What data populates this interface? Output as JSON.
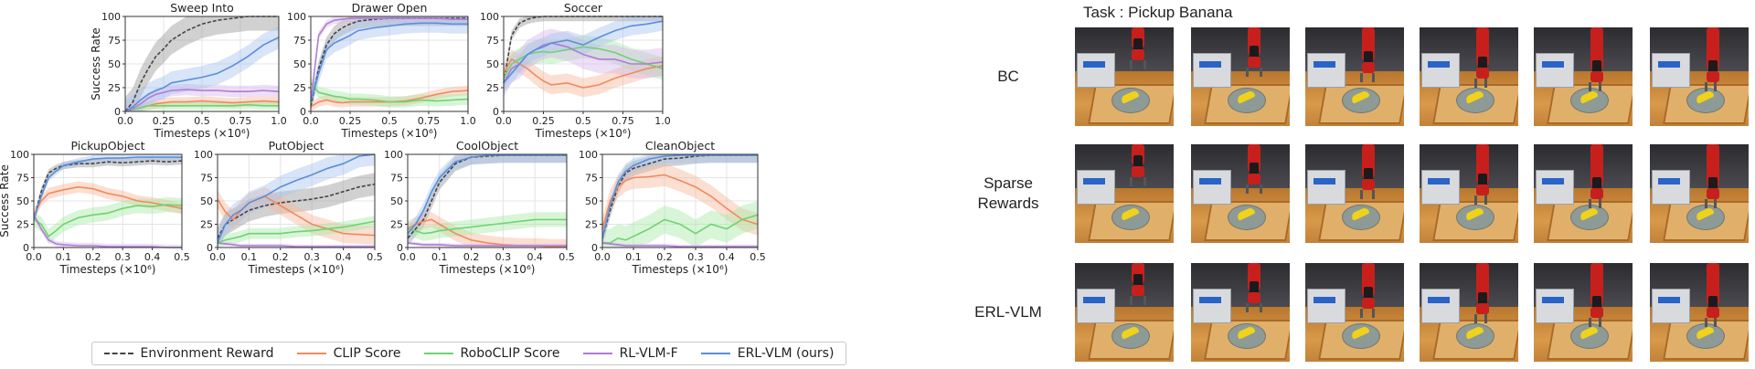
{
  "chart_data": [
    {
      "type": "line",
      "title": "Sweep Into",
      "xlabel": "Timesteps (×10⁶)",
      "ylabel": "Success Rate",
      "xlim": [
        0,
        1.0
      ],
      "ylim": [
        0,
        100
      ],
      "xticks": [
        "0.0",
        "0.25",
        "0.5",
        "0.75",
        "1.0"
      ],
      "yticks": [
        "0",
        "25",
        "50",
        "75",
        "100"
      ],
      "x": [
        0,
        0.05,
        0.1,
        0.15,
        0.2,
        0.25,
        0.3,
        0.4,
        0.5,
        0.6,
        0.7,
        0.8,
        0.9,
        1.0
      ],
      "series": [
        {
          "name": "Environment Reward",
          "values": [
            0,
            10,
            30,
            45,
            58,
            66,
            75,
            85,
            92,
            96,
            98,
            100,
            100,
            100
          ],
          "band": 15
        },
        {
          "name": "CLIP Score",
          "values": [
            0,
            2,
            4,
            6,
            8,
            9,
            10,
            10,
            11,
            10,
            9,
            10,
            11,
            10
          ],
          "band": 5
        },
        {
          "name": "RoboCLIP Score",
          "values": [
            0,
            2,
            4,
            6,
            6,
            6,
            6,
            6,
            6,
            6,
            6,
            7,
            6,
            6
          ],
          "band": 4
        },
        {
          "name": "RL-VLM-F",
          "values": [
            0,
            3,
            8,
            14,
            18,
            20,
            22,
            23,
            22,
            22,
            21,
            21,
            22,
            21
          ],
          "band": 6
        },
        {
          "name": "ERL-VLM (ours)",
          "values": [
            0,
            5,
            12,
            18,
            22,
            25,
            30,
            33,
            36,
            40,
            48,
            58,
            70,
            78
          ],
          "band": 12
        }
      ]
    },
    {
      "type": "line",
      "title": "Drawer Open",
      "xlabel": "Timesteps (×10⁶)",
      "ylabel": "",
      "xlim": [
        0,
        1.0
      ],
      "ylim": [
        0,
        100
      ],
      "xticks": [
        "0.0",
        "0.25",
        "0.5",
        "0.75",
        "1.0"
      ],
      "yticks": [
        "0",
        "25",
        "50",
        "75",
        "100"
      ],
      "x": [
        0,
        0.05,
        0.1,
        0.15,
        0.2,
        0.25,
        0.3,
        0.4,
        0.5,
        0.6,
        0.7,
        0.8,
        0.9,
        1.0
      ],
      "series": [
        {
          "name": "Environment Reward",
          "values": [
            5,
            45,
            70,
            82,
            88,
            92,
            95,
            97,
            98,
            98,
            98,
            98,
            98,
            98
          ],
          "band": 8
        },
        {
          "name": "CLIP Score",
          "values": [
            5,
            10,
            12,
            10,
            9,
            10,
            10,
            10,
            10,
            11,
            14,
            18,
            21,
            22
          ],
          "band": 5
        },
        {
          "name": "RoboCLIP Score",
          "values": [
            30,
            20,
            18,
            16,
            15,
            13,
            13,
            12,
            10,
            10,
            12,
            11,
            12,
            13
          ],
          "band": 6
        },
        {
          "name": "RL-VLM-F",
          "values": [
            10,
            80,
            92,
            96,
            97,
            98,
            98,
            98,
            98,
            98,
            98,
            98,
            97,
            97
          ],
          "band": 4
        },
        {
          "name": "ERL-VLM (ours)",
          "values": [
            10,
            40,
            65,
            72,
            76,
            80,
            85,
            88,
            90,
            92,
            93,
            93,
            92,
            92
          ],
          "band": 10
        }
      ]
    },
    {
      "type": "line",
      "title": "Soccer",
      "xlabel": "Timesteps (×10⁶)",
      "ylabel": "",
      "xlim": [
        0,
        1.0
      ],
      "ylim": [
        0,
        100
      ],
      "xticks": [
        "0.0",
        "0.25",
        "0.5",
        "0.75",
        "1.0"
      ],
      "yticks": [
        "0",
        "25",
        "50",
        "75",
        "100"
      ],
      "x": [
        0,
        0.05,
        0.1,
        0.15,
        0.2,
        0.25,
        0.3,
        0.4,
        0.5,
        0.6,
        0.7,
        0.8,
        0.9,
        1.0
      ],
      "series": [
        {
          "name": "Environment Reward",
          "values": [
            30,
            80,
            93,
            97,
            99,
            100,
            100,
            100,
            100,
            100,
            100,
            100,
            100,
            100
          ],
          "band": 5
        },
        {
          "name": "CLIP Score",
          "values": [
            40,
            55,
            50,
            45,
            38,
            32,
            28,
            30,
            25,
            28,
            35,
            40,
            45,
            48
          ],
          "band": 10
        },
        {
          "name": "RoboCLIP Score",
          "values": [
            35,
            50,
            55,
            60,
            62,
            63,
            62,
            65,
            68,
            66,
            62,
            55,
            50,
            45
          ],
          "band": 12
        },
        {
          "name": "RL-VLM-F",
          "values": [
            30,
            45,
            50,
            60,
            65,
            70,
            72,
            68,
            60,
            55,
            55,
            50,
            50,
            52
          ],
          "band": 15
        },
        {
          "name": "ERL-VLM (ours)",
          "values": [
            30,
            40,
            50,
            60,
            65,
            68,
            72,
            75,
            70,
            78,
            85,
            90,
            92,
            95
          ],
          "band": 10
        }
      ]
    },
    {
      "type": "line",
      "title": "PickupObject",
      "xlabel": "Timesteps (×10⁶)",
      "ylabel": "Success Rate",
      "xlim": [
        0,
        0.5
      ],
      "ylim": [
        0,
        100
      ],
      "xticks": [
        "0.0",
        "0.1",
        "0.2",
        "0.3",
        "0.4",
        "0.5"
      ],
      "yticks": [
        "0",
        "25",
        "50",
        "75",
        "100"
      ],
      "x": [
        0,
        0.025,
        0.05,
        0.075,
        0.1,
        0.15,
        0.2,
        0.25,
        0.3,
        0.35,
        0.4,
        0.45,
        0.5
      ],
      "series": [
        {
          "name": "Environment Reward",
          "values": [
            30,
            60,
            80,
            85,
            88,
            90,
            90,
            92,
            91,
            92,
            93,
            92,
            93
          ],
          "band": 4
        },
        {
          "name": "CLIP Score",
          "values": [
            35,
            50,
            58,
            60,
            62,
            65,
            63,
            58,
            55,
            50,
            48,
            45,
            42
          ],
          "band": 6
        },
        {
          "name": "RoboCLIP Score",
          "values": [
            30,
            25,
            12,
            18,
            25,
            32,
            35,
            37,
            42,
            45,
            44,
            46,
            45
          ],
          "band": 8
        },
        {
          "name": "RL-VLM-F",
          "values": [
            35,
            20,
            8,
            4,
            3,
            2,
            2,
            1,
            1,
            1,
            1,
            0,
            0
          ],
          "band": 3
        },
        {
          "name": "ERL-VLM (ours)",
          "values": [
            30,
            55,
            75,
            82,
            88,
            92,
            95,
            96,
            96,
            97,
            97,
            97,
            97
          ],
          "band": 4
        }
      ]
    },
    {
      "type": "line",
      "title": "PutObject",
      "xlabel": "Timesteps (×10⁶)",
      "ylabel": "",
      "xlim": [
        0,
        0.5
      ],
      "ylim": [
        0,
        100
      ],
      "xticks": [
        "0.0",
        "0.1",
        "0.2",
        "0.3",
        "0.4",
        "0.5"
      ],
      "yticks": [
        "0",
        "25",
        "50",
        "75",
        "100"
      ],
      "x": [
        0,
        0.025,
        0.05,
        0.075,
        0.1,
        0.15,
        0.2,
        0.25,
        0.3,
        0.35,
        0.4,
        0.45,
        0.5
      ],
      "series": [
        {
          "name": "Environment Reward",
          "values": [
            10,
            25,
            30,
            35,
            40,
            45,
            48,
            50,
            52,
            55,
            60,
            65,
            68
          ],
          "band": 12
        },
        {
          "name": "CLIP Score",
          "values": [
            52,
            38,
            30,
            40,
            48,
            55,
            45,
            35,
            25,
            20,
            15,
            14,
            13
          ],
          "band": 10
        },
        {
          "name": "RoboCLIP Score",
          "values": [
            5,
            8,
            10,
            12,
            15,
            15,
            15,
            17,
            18,
            20,
            22,
            25,
            28
          ],
          "band": 6
        },
        {
          "name": "RL-VLM-F",
          "values": [
            5,
            4,
            3,
            2,
            2,
            2,
            2,
            1,
            1,
            1,
            1,
            1,
            1
          ],
          "band": 2
        },
        {
          "name": "ERL-VLM (ours)",
          "values": [
            5,
            25,
            35,
            40,
            48,
            55,
            65,
            72,
            78,
            85,
            90,
            98,
            100
          ],
          "band": 12
        }
      ]
    },
    {
      "type": "line",
      "title": "CoolObject",
      "xlabel": "Timesteps (×10⁶)",
      "ylabel": "",
      "xlim": [
        0,
        0.5
      ],
      "ylim": [
        0,
        100
      ],
      "xticks": [
        "0.0",
        "0.1",
        "0.2",
        "0.3",
        "0.4",
        "0.5"
      ],
      "yticks": [
        "0",
        "25",
        "50",
        "75",
        "100"
      ],
      "x": [
        0,
        0.025,
        0.05,
        0.075,
        0.1,
        0.15,
        0.2,
        0.25,
        0.3,
        0.35,
        0.4,
        0.45,
        0.5
      ],
      "series": [
        {
          "name": "Environment Reward",
          "values": [
            10,
            20,
            30,
            50,
            70,
            90,
            97,
            98,
            99,
            99,
            99,
            99,
            99
          ],
          "band": 8
        },
        {
          "name": "CLIP Score",
          "values": [
            20,
            25,
            28,
            30,
            25,
            15,
            8,
            5,
            3,
            2,
            2,
            1,
            1
          ],
          "band": 8
        },
        {
          "name": "RoboCLIP Score",
          "values": [
            20,
            18,
            15,
            16,
            18,
            20,
            22,
            24,
            26,
            28,
            30,
            30,
            30
          ],
          "band": 8
        },
        {
          "name": "RL-VLM-F",
          "values": [
            5,
            4,
            3,
            3,
            3,
            2,
            2,
            2,
            2,
            2,
            2,
            2,
            2
          ],
          "band": 2
        },
        {
          "name": "ERL-VLM (ours)",
          "values": [
            15,
            25,
            40,
            60,
            75,
            92,
            97,
            99,
            99,
            99,
            99,
            99,
            99
          ],
          "band": 8
        }
      ]
    },
    {
      "type": "line",
      "title": "CleanObject",
      "xlabel": "Timesteps (×10⁶)",
      "ylabel": "",
      "xlim": [
        0,
        0.5
      ],
      "ylim": [
        0,
        100
      ],
      "xticks": [
        "0.0",
        "0.1",
        "0.2",
        "0.3",
        "0.4",
        "0.5"
      ],
      "yticks": [
        "0",
        "25",
        "50",
        "75",
        "100"
      ],
      "x": [
        0,
        0.025,
        0.05,
        0.075,
        0.1,
        0.15,
        0.2,
        0.25,
        0.3,
        0.35,
        0.4,
        0.45,
        0.5
      ],
      "series": [
        {
          "name": "Environment Reward",
          "values": [
            10,
            40,
            65,
            80,
            85,
            90,
            95,
            96,
            98,
            99,
            99,
            99,
            99
          ],
          "band": 8
        },
        {
          "name": "CLIP Score",
          "values": [
            20,
            50,
            65,
            72,
            75,
            76,
            78,
            72,
            65,
            55,
            42,
            30,
            25
          ],
          "band": 12
        },
        {
          "name": "RoboCLIP Score",
          "values": [
            5,
            5,
            10,
            8,
            12,
            20,
            30,
            25,
            15,
            25,
            20,
            30,
            35
          ],
          "band": 15
        },
        {
          "name": "RL-VLM-F",
          "values": [
            5,
            4,
            3,
            2,
            2,
            2,
            2,
            1,
            1,
            1,
            1,
            1,
            1
          ],
          "band": 2
        },
        {
          "name": "ERL-VLM (ours)",
          "values": [
            10,
            45,
            70,
            82,
            88,
            95,
            98,
            99,
            99,
            99,
            99,
            99,
            99
          ],
          "band": 8
        }
      ]
    }
  ],
  "legend": [
    {
      "name": "Environment Reward",
      "color": "#444444",
      "dash": true
    },
    {
      "name": "CLIP Score",
      "color": "#f08a5d",
      "dash": false
    },
    {
      "name": "RoboCLIP Score",
      "color": "#6fd36f",
      "dash": false
    },
    {
      "name": "RL-VLM-F",
      "color": "#b07cd6",
      "dash": false
    },
    {
      "name": "ERL-VLM (ours)",
      "color": "#5b8fd9",
      "dash": false
    }
  ],
  "series_colors": {
    "Environment Reward": "#444444",
    "CLIP Score": "#f08a5d",
    "RoboCLIP Score": "#6fd36f",
    "RL-VLM-F": "#b07cd6",
    "ERL-VLM (ours)": "#5b8fd9"
  },
  "band_colors": {
    "Environment Reward": "#9a9a9a",
    "CLIP Score": "#f6b89b",
    "RoboCLIP Score": "#a8e8a8",
    "RL-VLM-F": "#d6b8ec",
    "ERL-VLM (ours)": "#a9c4ee"
  },
  "task_panel": {
    "title": "Task : Pickup Banana",
    "rows": [
      {
        "label_lines": [
          "BC"
        ]
      },
      {
        "label_lines": [
          "Sparse",
          "Rewards"
        ]
      },
      {
        "label_lines": [
          "ERL-VLM"
        ]
      }
    ],
    "frames_per_row": 6
  }
}
